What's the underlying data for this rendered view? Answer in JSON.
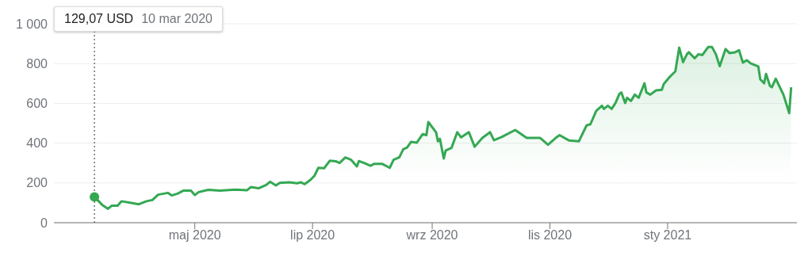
{
  "chart_data": {
    "type": "area",
    "color": "#34a853",
    "x": [
      "2020-03-10",
      "2020-03-12",
      "2020-03-14",
      "2020-03-17",
      "2020-03-19",
      "2020-03-22",
      "2020-03-24",
      "2020-03-29",
      "2020-04-02",
      "2020-04-06",
      "2020-04-09",
      "2020-04-12",
      "2020-04-17",
      "2020-04-19",
      "2020-04-22",
      "2020-04-25",
      "2020-04-29",
      "2020-05-01",
      "2020-05-03",
      "2020-05-08",
      "2020-05-14",
      "2020-05-22",
      "2020-05-28",
      "2020-05-30",
      "2020-06-03",
      "2020-06-07",
      "2020-06-09",
      "2020-06-12",
      "2020-06-14",
      "2020-06-19",
      "2020-06-23",
      "2020-06-25",
      "2020-06-27",
      "2020-06-30",
      "2020-07-02",
      "2020-07-04",
      "2020-07-07",
      "2020-07-10",
      "2020-07-13",
      "2020-07-15",
      "2020-07-18",
      "2020-07-21",
      "2020-07-24",
      "2020-07-25",
      "2020-07-28",
      "2020-07-31",
      "2020-08-02",
      "2020-08-06",
      "2020-08-10",
      "2020-08-12",
      "2020-08-15",
      "2020-08-17",
      "2020-08-19",
      "2020-08-21",
      "2020-08-24",
      "2020-08-27",
      "2020-08-29",
      "2020-08-30",
      "2020-09-03",
      "2020-09-04",
      "2020-09-05",
      "2020-09-07",
      "2020-09-08",
      "2020-09-11",
      "2020-09-14",
      "2020-09-16",
      "2020-09-20",
      "2020-09-23",
      "2020-09-27",
      "2020-10-01",
      "2020-10-03",
      "2020-10-07",
      "2020-10-14",
      "2020-10-20",
      "2020-10-27",
      "2020-10-31",
      "2020-11-04",
      "2020-11-06",
      "2020-11-11",
      "2020-11-16",
      "2020-11-20",
      "2020-11-22",
      "2020-11-25",
      "2020-11-28",
      "2020-11-29",
      "2020-12-01",
      "2020-12-03",
      "2020-12-05",
      "2020-12-07",
      "2020-12-08",
      "2020-12-10",
      "2020-12-11",
      "2020-12-13",
      "2020-12-15",
      "2020-12-17",
      "2020-12-20",
      "2020-12-21",
      "2020-12-23",
      "2020-12-26",
      "2020-12-29",
      "2020-12-30",
      "2021-01-02",
      "2021-01-05",
      "2021-01-07",
      "2021-01-09",
      "2021-01-11",
      "2021-01-12",
      "2021-01-15",
      "2021-01-17",
      "2021-01-19",
      "2021-01-22",
      "2021-01-24",
      "2021-01-26",
      "2021-01-28",
      "2021-01-31",
      "2021-02-02",
      "2021-02-05",
      "2021-02-07",
      "2021-02-09",
      "2021-02-11",
      "2021-02-13",
      "2021-02-17",
      "2021-02-18",
      "2021-02-20",
      "2021-02-21",
      "2021-02-23",
      "2021-02-24",
      "2021-02-26",
      "2021-03-02",
      "2021-03-05",
      "2021-03-06"
    ],
    "values": [
      129.07,
      110,
      90,
      70,
      86,
      86,
      108,
      100,
      93,
      108,
      114,
      141,
      150,
      137,
      146,
      161,
      161,
      139,
      154,
      165,
      161,
      166,
      163,
      179,
      173,
      190,
      206,
      187,
      200,
      203,
      198,
      203,
      194,
      216,
      236,
      276,
      274,
      312,
      309,
      300,
      328,
      316,
      283,
      310,
      299,
      286,
      296,
      296,
      276,
      316,
      329,
      369,
      378,
      406,
      402,
      445,
      440,
      506,
      455,
      409,
      422,
      323,
      363,
      376,
      455,
      429,
      455,
      382,
      426,
      455,
      415,
      431,
      466,
      426,
      426,
      392,
      426,
      440,
      413,
      409,
      489,
      495,
      562,
      588,
      572,
      588,
      572,
      602,
      648,
      655,
      602,
      628,
      612,
      644,
      628,
      701,
      655,
      644,
      665,
      668,
      697,
      732,
      761,
      880,
      807,
      847,
      857,
      827,
      847,
      843,
      883,
      883,
      847,
      787,
      873,
      853,
      857,
      867,
      805,
      817,
      801,
      785,
      721,
      701,
      748,
      688,
      681,
      724,
      644,
      551,
      681
    ],
    "xlim": [
      "2020-02-18",
      "2021-03-09"
    ],
    "xticks": [
      {
        "value": "2020-05-01",
        "label": "maj 2020"
      },
      {
        "value": "2020-07-01",
        "label": "lip 2020"
      },
      {
        "value": "2020-09-01",
        "label": "wrz 2020"
      },
      {
        "value": "2020-11-01",
        "label": "lis 2020"
      },
      {
        "value": "2021-01-01",
        "label": "sty 2021"
      }
    ],
    "ylim": [
      0,
      1000
    ],
    "yticks": [
      0,
      200,
      400,
      600,
      800,
      {
        "value": 1000,
        "label": "1 000"
      }
    ],
    "grid": "y",
    "ref_lines": [
      {
        "axis": "x",
        "value": "2020-03-10",
        "line_style": "dotted",
        "color": "#757575"
      }
    ],
    "annotations": [
      "129,07 USD",
      "10 mar 2020"
    ]
  }
}
